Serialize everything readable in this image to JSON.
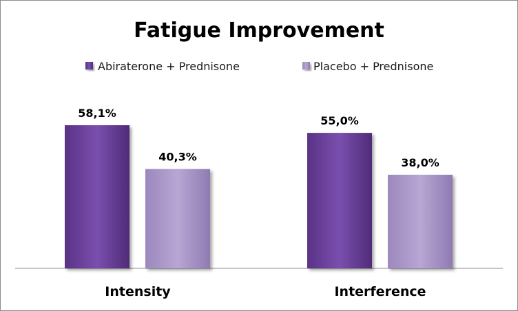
{
  "chart_data": {
    "type": "bar",
    "title": "Fatigue Improvement",
    "categories": [
      "Intensity",
      "Interference"
    ],
    "series": [
      {
        "name": "Abiraterone + Prednisone",
        "values": [
          58.1,
          55.0
        ],
        "labels": [
          "58,1%",
          "55,0%"
        ],
        "color": "#6b3f99"
      },
      {
        "name": "Placebo + Prednisone",
        "values": [
          40.3,
          38.0
        ],
        "labels": [
          "40,3%",
          "38,0%"
        ],
        "color": "#a995c8"
      }
    ],
    "ylim": [
      0,
      70
    ],
    "grid": false,
    "legend": "top"
  }
}
